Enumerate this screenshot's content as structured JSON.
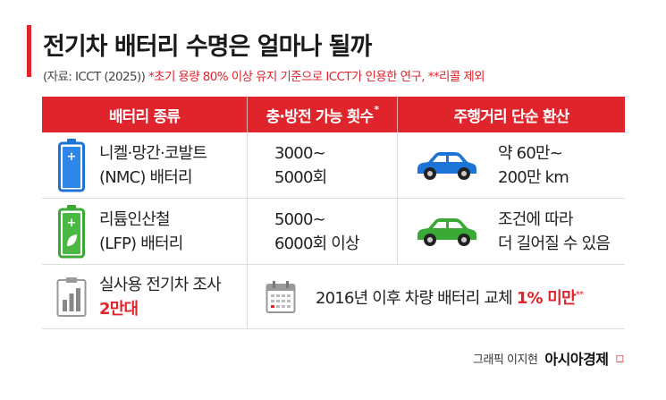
{
  "title": "전기차 배터리 수명은 얼마나 될까",
  "source": {
    "text": "(자료: ICCT (2025))",
    "note1": "*초기 용량 80% 이상 유지 기준으로 ICCT가 인용한 연구,",
    "note2": "**리콜 제외"
  },
  "table": {
    "headers": [
      "배터리 종류",
      "충·방전 가능 횟수",
      "주행거리 단순 환산"
    ],
    "header_mark": "*",
    "rows": [
      {
        "battery_line1": "니켈·망간·코발트",
        "battery_line2": "(NMC) 배터리",
        "cycles_line1": "3000~",
        "cycles_line2": "5000회",
        "range_line1": "약 60만~",
        "range_line2": "200만 km",
        "battery_icon": "battery-nmc-icon",
        "car_icon": "car-icon",
        "battery_color": "#1e73d6",
        "car_color": "#1e73d6"
      },
      {
        "battery_line1": "리튬인산철",
        "battery_line2": "(LFP) 배터리",
        "cycles_line1": "5000~",
        "cycles_line2": "6000회 이상",
        "range_line1": "조건에 따라",
        "range_line2": "더 길어질 수 있음",
        "battery_icon": "battery-lfp-icon",
        "car_icon": "car-icon",
        "battery_color": "#3aa935",
        "car_color": "#3aa935"
      }
    ],
    "survey": {
      "label": "실사용 전기차 조사",
      "count": "2만대",
      "icon": "bar-chart-clipboard-icon"
    },
    "replacement": {
      "prefix": "2016년 이후 차량 배터리 교체 ",
      "highlight": "1% 미만",
      "mark": "**",
      "icon": "calendar-icon"
    }
  },
  "credit": {
    "author": "그래픽 이지현",
    "brand": "아시아경제",
    "brand_mark": "◻"
  },
  "colors": {
    "accent": "#e0242c"
  }
}
